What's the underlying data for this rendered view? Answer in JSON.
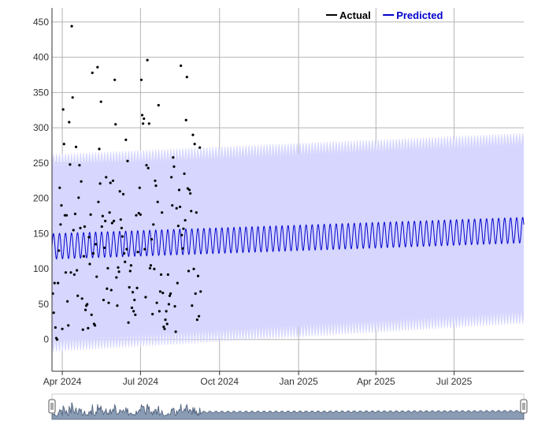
{
  "chart_data": {
    "type": "line",
    "title": "",
    "xlabel": "",
    "ylabel": "",
    "ylim": [
      -45,
      470
    ],
    "xlim": [
      "2024-03-20",
      "2025-09-20"
    ],
    "y_ticks": [
      0,
      50,
      100,
      150,
      200,
      250,
      300,
      350,
      400,
      450
    ],
    "x_ticks": [
      {
        "date": "2024-04-01",
        "label": "Apr 2024"
      },
      {
        "date": "2024-07-01",
        "label": "Jul 2024"
      },
      {
        "date": "2024-10-01",
        "label": "Oct 2024"
      },
      {
        "date": "2025-01-01",
        "label": "Jan 2025"
      },
      {
        "date": "2025-04-01",
        "label": "Apr 2025"
      },
      {
        "date": "2025-07-01",
        "label": "Jul 2025"
      }
    ],
    "grid": true,
    "legend": {
      "position": "top-right",
      "entries": [
        "Actual",
        "Predicted"
      ]
    },
    "series": [
      {
        "name": "Actual",
        "type": "scatter",
        "color": "#000000",
        "points": [
          [
            "2024-03-21",
            65
          ],
          [
            "2024-03-22",
            38
          ],
          [
            "2024-03-23",
            80
          ],
          [
            "2024-03-24",
            17
          ],
          [
            "2024-03-25",
            2
          ],
          [
            "2024-03-26",
            0
          ],
          [
            "2024-03-27",
            80
          ],
          [
            "2024-03-28",
            126
          ],
          [
            "2024-03-29",
            215
          ],
          [
            "2024-03-30",
            163
          ],
          [
            "2024-03-31",
            190
          ],
          [
            "2024-04-01",
            15
          ],
          [
            "2024-04-02",
            326
          ],
          [
            "2024-04-03",
            277
          ],
          [
            "2024-04-04",
            176
          ],
          [
            "2024-04-05",
            95
          ],
          [
            "2024-04-06",
            176
          ],
          [
            "2024-04-07",
            54
          ],
          [
            "2024-04-08",
            20
          ],
          [
            "2024-04-09",
            308
          ],
          [
            "2024-04-10",
            248
          ],
          [
            "2024-04-11",
            95
          ],
          [
            "2024-04-12",
            444
          ],
          [
            "2024-04-13",
            343
          ],
          [
            "2024-04-14",
            155
          ],
          [
            "2024-04-15",
            92
          ],
          [
            "2024-04-16",
            178
          ],
          [
            "2024-04-17",
            273
          ],
          [
            "2024-04-18",
            98
          ],
          [
            "2024-04-19",
            62
          ],
          [
            "2024-04-20",
            201
          ],
          [
            "2024-04-21",
            247
          ],
          [
            "2024-04-22",
            158
          ],
          [
            "2024-04-23",
            224
          ],
          [
            "2024-04-24",
            58
          ],
          [
            "2024-04-25",
            14
          ],
          [
            "2024-04-26",
            118
          ],
          [
            "2024-04-27",
            160
          ],
          [
            "2024-04-28",
            42
          ],
          [
            "2024-04-29",
            48
          ],
          [
            "2024-04-30",
            50
          ],
          [
            "2024-05-01",
            16
          ],
          [
            "2024-05-02",
            145
          ],
          [
            "2024-05-03",
            107
          ],
          [
            "2024-05-04",
            177
          ],
          [
            "2024-05-05",
            35
          ],
          [
            "2024-05-06",
            378
          ],
          [
            "2024-05-07",
            122
          ],
          [
            "2024-05-08",
            22
          ],
          [
            "2024-05-09",
            20
          ],
          [
            "2024-05-10",
            135
          ],
          [
            "2024-05-11",
            89
          ],
          [
            "2024-05-12",
            386
          ],
          [
            "2024-05-13",
            195
          ],
          [
            "2024-05-14",
            270
          ],
          [
            "2024-05-15",
            221
          ],
          [
            "2024-05-16",
            337
          ],
          [
            "2024-05-17",
            160
          ],
          [
            "2024-05-18",
            175
          ],
          [
            "2024-05-19",
            56
          ],
          [
            "2024-05-20",
            130
          ],
          [
            "2024-05-21",
            168
          ],
          [
            "2024-05-22",
            230
          ],
          [
            "2024-05-23",
            72
          ],
          [
            "2024-05-24",
            101
          ],
          [
            "2024-05-25",
            52
          ],
          [
            "2024-05-26",
            180
          ],
          [
            "2024-05-27",
            222
          ],
          [
            "2024-05-28",
            70
          ],
          [
            "2024-05-29",
            165
          ],
          [
            "2024-05-30",
            225
          ],
          [
            "2024-05-31",
            168
          ],
          [
            "2024-06-01",
            368
          ],
          [
            "2024-06-02",
            305
          ],
          [
            "2024-06-03",
            88
          ],
          [
            "2024-06-04",
            48
          ],
          [
            "2024-06-05",
            102
          ],
          [
            "2024-06-06",
            96
          ],
          [
            "2024-06-07",
            210
          ],
          [
            "2024-06-08",
            170
          ],
          [
            "2024-06-09",
            158
          ],
          [
            "2024-06-10",
            146
          ],
          [
            "2024-06-11",
            206
          ],
          [
            "2024-06-12",
            122
          ],
          [
            "2024-06-13",
            110
          ],
          [
            "2024-06-14",
            283
          ],
          [
            "2024-06-15",
            128
          ],
          [
            "2024-06-16",
            253
          ],
          [
            "2024-06-17",
            24
          ],
          [
            "2024-06-18",
            74
          ],
          [
            "2024-06-19",
            97
          ],
          [
            "2024-06-20",
            105
          ],
          [
            "2024-06-21",
            45
          ],
          [
            "2024-06-22",
            67
          ],
          [
            "2024-06-23",
            40
          ],
          [
            "2024-06-24",
            56
          ],
          [
            "2024-06-25",
            35
          ],
          [
            "2024-06-26",
            176
          ],
          [
            "2024-06-27",
            73
          ],
          [
            "2024-06-28",
            124
          ],
          [
            "2024-06-29",
            179
          ],
          [
            "2024-06-30",
            215
          ],
          [
            "2024-07-01",
            177
          ],
          [
            "2024-07-02",
            368
          ],
          [
            "2024-07-03",
            318
          ],
          [
            "2024-07-04",
            306
          ],
          [
            "2024-07-05",
            313
          ],
          [
            "2024-07-06",
            128
          ],
          [
            "2024-07-07",
            60
          ],
          [
            "2024-07-08",
            247
          ],
          [
            "2024-07-09",
            396
          ],
          [
            "2024-07-10",
            243
          ],
          [
            "2024-07-11",
            306
          ],
          [
            "2024-07-12",
            101
          ],
          [
            "2024-07-13",
            105
          ],
          [
            "2024-07-14",
            142
          ],
          [
            "2024-07-15",
            36
          ],
          [
            "2024-07-16",
            163
          ],
          [
            "2024-07-17",
            100
          ],
          [
            "2024-07-18",
            225
          ],
          [
            "2024-07-19",
            218
          ],
          [
            "2024-07-20",
            52
          ],
          [
            "2024-07-21",
            195
          ],
          [
            "2024-07-22",
            332
          ],
          [
            "2024-07-23",
            40
          ],
          [
            "2024-07-24",
            68
          ],
          [
            "2024-07-25",
            92
          ],
          [
            "2024-07-26",
            180
          ],
          [
            "2024-07-27",
            66
          ],
          [
            "2024-07-28",
            18
          ],
          [
            "2024-07-29",
            15
          ],
          [
            "2024-07-30",
            28
          ],
          [
            "2024-07-31",
            40
          ],
          [
            "2024-08-01",
            22
          ],
          [
            "2024-08-02",
            92
          ],
          [
            "2024-08-03",
            50
          ],
          [
            "2024-08-04",
            62
          ],
          [
            "2024-08-05",
            65
          ],
          [
            "2024-08-06",
            230
          ],
          [
            "2024-08-07",
            190
          ],
          [
            "2024-08-08",
            258
          ],
          [
            "2024-08-09",
            245
          ],
          [
            "2024-08-10",
            47
          ],
          [
            "2024-08-11",
            11
          ],
          [
            "2024-08-12",
            186
          ],
          [
            "2024-08-13",
            80
          ],
          [
            "2024-08-14",
            161
          ],
          [
            "2024-08-15",
            212
          ],
          [
            "2024-08-16",
            188
          ],
          [
            "2024-08-17",
            388
          ],
          [
            "2024-08-18",
            148
          ],
          [
            "2024-08-19",
            129
          ],
          [
            "2024-08-20",
            157
          ],
          [
            "2024-08-21",
            235
          ],
          [
            "2024-08-22",
            169
          ],
          [
            "2024-08-23",
            311
          ],
          [
            "2024-08-24",
            372
          ],
          [
            "2024-08-25",
            214
          ],
          [
            "2024-08-26",
            97
          ],
          [
            "2024-08-27",
            212
          ],
          [
            "2024-08-28",
            207
          ],
          [
            "2024-08-29",
            182
          ],
          [
            "2024-08-30",
            48
          ],
          [
            "2024-08-31",
            290
          ],
          [
            "2024-09-01",
            100
          ],
          [
            "2024-09-02",
            277
          ],
          [
            "2024-09-03",
            65
          ],
          [
            "2024-09-04",
            180
          ],
          [
            "2024-09-05",
            28
          ],
          [
            "2024-09-06",
            90
          ],
          [
            "2024-09-07",
            33
          ],
          [
            "2024-09-08",
            272
          ],
          [
            "2024-09-09",
            68
          ]
        ]
      },
      {
        "name": "Predicted",
        "type": "line",
        "color": "#0000cc",
        "start": "2024-03-20",
        "end": "2025-09-20",
        "mean_start": 132,
        "mean_end": 155,
        "weekly_amplitude": 18,
        "period_days": 7,
        "interval": {
          "color": "#d6d6ff",
          "lower_start": 0,
          "lower_end": 40,
          "upper_start": 245,
          "upper_end": 275,
          "spike": 18
        }
      }
    ],
    "range_selector": {
      "enabled": true
    }
  }
}
